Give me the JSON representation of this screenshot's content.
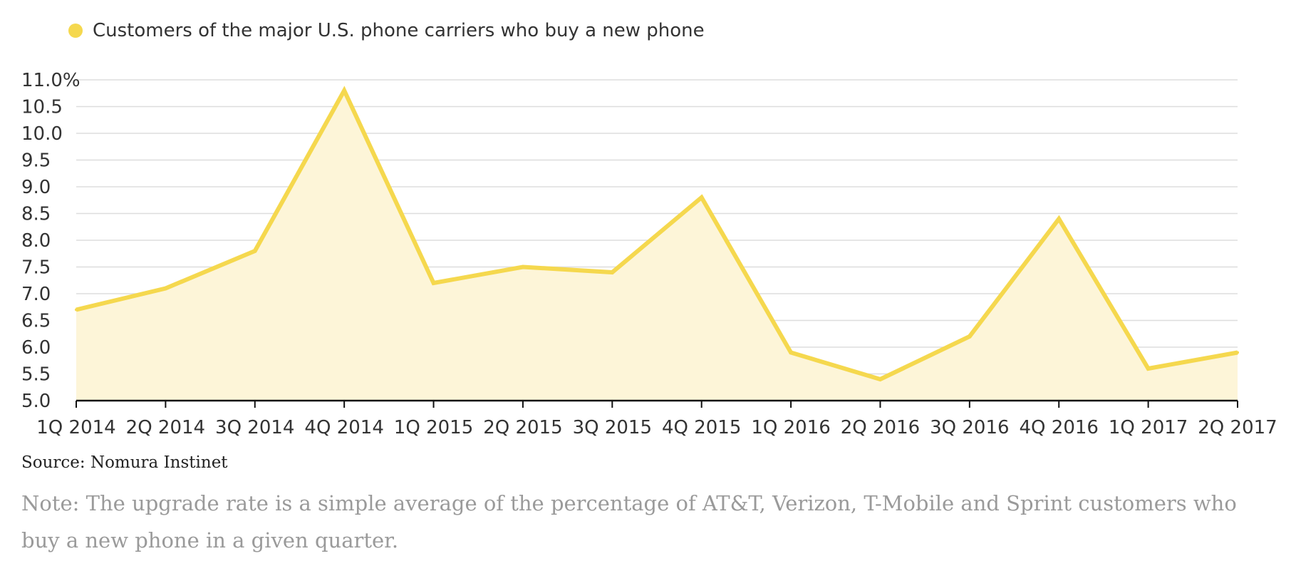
{
  "legend": {
    "label": "Customers of the major U.S. phone carriers who buy a new phone"
  },
  "colors": {
    "line": "#F5D84E",
    "fill": "#FDF5D8",
    "grid": "#dddddd",
    "axis": "#111111",
    "text": "#333333"
  },
  "chart_data": {
    "type": "area",
    "title": "",
    "xlabel": "",
    "ylabel": "",
    "categories": [
      "1Q 2014",
      "2Q 2014",
      "3Q 2014",
      "4Q 2014",
      "1Q 2015",
      "2Q 2015",
      "3Q 2015",
      "4Q 2015",
      "1Q 2016",
      "2Q 2016",
      "3Q 2016",
      "4Q 2016",
      "1Q 2017",
      "2Q 2017"
    ],
    "series": [
      {
        "name": "Customers of the major U.S. phone carriers who buy a new phone",
        "values": [
          6.7,
          7.1,
          7.8,
          10.8,
          7.2,
          7.5,
          7.4,
          8.8,
          5.9,
          5.4,
          6.2,
          8.4,
          5.6,
          5.9
        ]
      }
    ],
    "ylim": [
      5.0,
      11.0
    ],
    "yticks": [
      5.0,
      5.5,
      6.0,
      6.5,
      7.0,
      7.5,
      8.0,
      8.5,
      9.0,
      9.5,
      10.0,
      10.5,
      11.0
    ],
    "ytick_labels": [
      "5.0",
      "5.5",
      "6.0",
      "6.5",
      "7.0",
      "7.5",
      "8.0",
      "8.5",
      "9.0",
      "9.5",
      "10.0",
      "10.5",
      "11.0%"
    ],
    "grid": true,
    "legend_position": "top-left"
  },
  "source": "Source: Nomura Instinet",
  "note": "Note: The upgrade rate is a simple average of the percentage of AT&T, Verizon, T-Mobile and Sprint customers who buy a new phone in a given quarter."
}
